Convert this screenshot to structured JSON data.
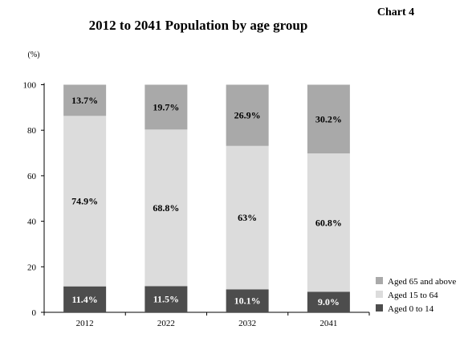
{
  "chart_data": {
    "type": "bar",
    "stacked": true,
    "title": "2012 to 2041 Population by age group",
    "corner_label": "Chart 4",
    "unit_label": "(%)",
    "xlabel": "",
    "ylabel": "",
    "ylim": [
      0,
      100
    ],
    "yticks": [
      0,
      20,
      40,
      60,
      80,
      100
    ],
    "grid": false,
    "legend_position": "bottom-right",
    "categories": [
      "2012",
      "2022",
      "2032",
      "2041"
    ],
    "series": [
      {
        "name": "Aged 0 to 14",
        "color": "#4d4d4d",
        "label_color": "#ffffff",
        "values": [
          11.4,
          11.5,
          10.1,
          9.0
        ],
        "labels": [
          "11.4%",
          "11.5%",
          "10.1%",
          "9.0%"
        ]
      },
      {
        "name": "Aged 15 to 64",
        "color": "#dcdcdc",
        "label_color": "#000000",
        "values": [
          74.9,
          68.8,
          63.0,
          60.8
        ],
        "labels": [
          "74.9%",
          "68.8%",
          "63%",
          "60.8%"
        ]
      },
      {
        "name": "Aged 65 and above",
        "color": "#a9a9a9",
        "label_color": "#000000",
        "values": [
          13.7,
          19.7,
          26.9,
          30.2
        ],
        "labels": [
          "13.7%",
          "19.7%",
          "26.9%",
          "30.2%"
        ]
      }
    ],
    "legend_order": [
      "Aged 65 and above",
      "Aged 15 to 64",
      "Aged 0 to 14"
    ]
  }
}
